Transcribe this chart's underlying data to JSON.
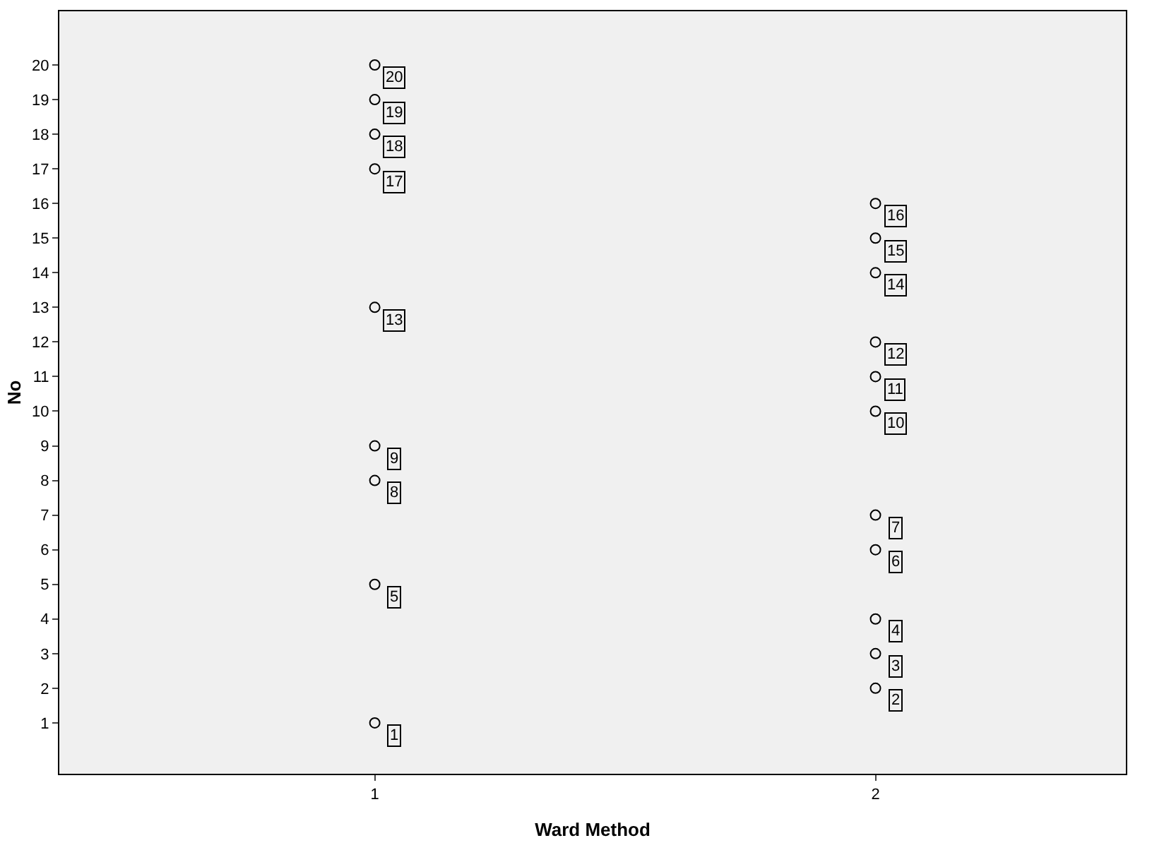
{
  "chart_data": {
    "type": "scatter",
    "xlabel": "Ward Method",
    "ylabel": "No",
    "categories": [
      "1",
      "2"
    ],
    "series": [
      {
        "color": "#000000",
        "x": [
          "1",
          "1",
          "1",
          "1",
          "1",
          "1",
          "1",
          "1",
          "1",
          "2",
          "2",
          "2",
          "2",
          "2",
          "2",
          "2",
          "2",
          "2",
          "2",
          "2"
        ],
        "values": [
          1,
          5,
          8,
          9,
          13,
          17,
          18,
          19,
          20,
          2,
          3,
          4,
          6,
          7,
          10,
          11,
          12,
          14,
          15,
          16
        ]
      }
    ],
    "ylim": [
      -0.47,
      21.55
    ],
    "yticks": [
      1,
      2,
      3,
      4,
      5,
      6,
      7,
      8,
      9,
      10,
      11,
      12,
      13,
      14,
      15,
      16,
      17,
      18,
      19,
      20
    ],
    "grid": false,
    "legend": false,
    "marker": "circle",
    "annotations": [
      {
        "text": "1",
        "x": "1",
        "y": 1
      },
      {
        "text": "5",
        "x": "1",
        "y": 5
      },
      {
        "text": "8",
        "x": "1",
        "y": 8
      },
      {
        "text": "9",
        "x": "1",
        "y": 9
      },
      {
        "text": "13",
        "x": "1",
        "y": 13
      },
      {
        "text": "17",
        "x": "1",
        "y": 17
      },
      {
        "text": "18",
        "x": "1",
        "y": 18
      },
      {
        "text": "19",
        "x": "1",
        "y": 19
      },
      {
        "text": "20",
        "x": "1",
        "y": 20
      },
      {
        "text": "2",
        "x": "2",
        "y": 2
      },
      {
        "text": "3",
        "x": "2",
        "y": 3
      },
      {
        "text": "4",
        "x": "2",
        "y": 4
      },
      {
        "text": "6",
        "x": "2",
        "y": 6
      },
      {
        "text": "7",
        "x": "2",
        "y": 7
      },
      {
        "text": "10",
        "x": "2",
        "y": 10
      },
      {
        "text": "11",
        "x": "2",
        "y": 11
      },
      {
        "text": "12",
        "x": "2",
        "y": 12
      },
      {
        "text": "14",
        "x": "2",
        "y": 14
      },
      {
        "text": "15",
        "x": "2",
        "y": 15
      },
      {
        "text": "16",
        "x": "2",
        "y": 16
      }
    ]
  }
}
